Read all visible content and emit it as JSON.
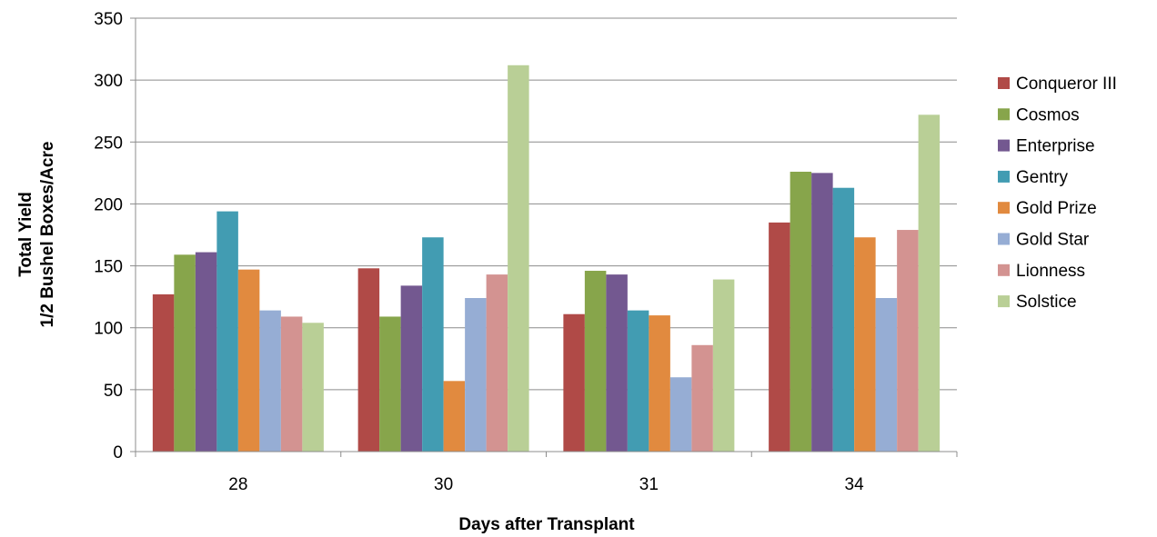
{
  "chart_data": {
    "type": "bar",
    "title": "",
    "xlabel": "Days after Transplant",
    "ylabel_line1": "Total Yield",
    "ylabel_line2": "1/2 Bushel Boxes/Acre",
    "categories": [
      "28",
      "30",
      "31",
      "34"
    ],
    "ylim": [
      0,
      350
    ],
    "yticks": [
      0,
      50,
      100,
      150,
      200,
      250,
      300,
      350
    ],
    "grid": true,
    "legend_position": "right",
    "series": [
      {
        "name": "Conqueror III",
        "color": "#b04a47",
        "values": [
          127,
          148,
          111,
          185
        ]
      },
      {
        "name": "Cosmos",
        "color": "#87a54b",
        "values": [
          159,
          109,
          146,
          226
        ]
      },
      {
        "name": "Enterprise",
        "color": "#735890",
        "values": [
          161,
          134,
          143,
          225
        ]
      },
      {
        "name": "Gentry",
        "color": "#429cb2",
        "values": [
          194,
          173,
          114,
          213
        ]
      },
      {
        "name": "Gold Prize",
        "color": "#e18a3f",
        "values": [
          147,
          57,
          110,
          173
        ]
      },
      {
        "name": "Gold Star",
        "color": "#96add4",
        "values": [
          114,
          124,
          60,
          124
        ]
      },
      {
        "name": "Lionness",
        "color": "#d39391",
        "values": [
          109,
          143,
          86,
          179
        ]
      },
      {
        "name": "Solstice",
        "color": "#b9cf96",
        "values": [
          104,
          312,
          139,
          272
        ]
      }
    ]
  }
}
